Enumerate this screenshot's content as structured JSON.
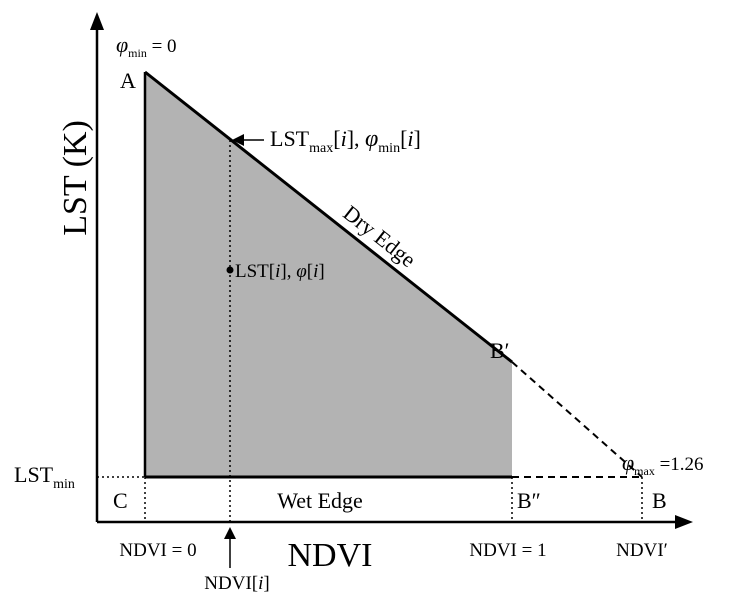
{
  "diagram": {
    "axes": {
      "y_label": "LST (K)",
      "x_label": "NDVI",
      "lst_min_label": {
        "main": "LST",
        "sub": "min"
      }
    },
    "points": {
      "A": "A",
      "C": "C",
      "B": "B",
      "B_prime": "B′",
      "B_double_prime": "B″"
    },
    "annotations": {
      "phi_min_top": {
        "sym": "φ",
        "sub": "min",
        "rest": " = 0"
      },
      "phi_max_right": {
        "sym": "φ",
        "sub": "max",
        "rest": " =1.26"
      },
      "lstmax_pointer": {
        "lst": "LST",
        "lst_sub": "max",
        "i1": "[",
        "i": "i",
        "i2": "], ",
        "phi": "φ",
        "phi_sub": "min",
        "j1": "[",
        "j": "i",
        "j2": "]"
      },
      "lst_point": {
        "lst": "LST[",
        "i": "i",
        "mid": "], ",
        "phi": "φ",
        "open": "[",
        "i2": "i",
        "close": "]"
      }
    },
    "edges": {
      "dry": "Dry Edge",
      "wet": "Wet Edge"
    },
    "x_ticks": {
      "ndvi_0": "NDVI = 0",
      "ndvi_1": "NDVI = 1",
      "ndvi_prime": "NDVI′",
      "ndvi_i": {
        "main": "NDVI[",
        "i": "i",
        "close": "]"
      }
    },
    "colors": {
      "fill": "#b3b3b3",
      "line": "#000000"
    }
  }
}
